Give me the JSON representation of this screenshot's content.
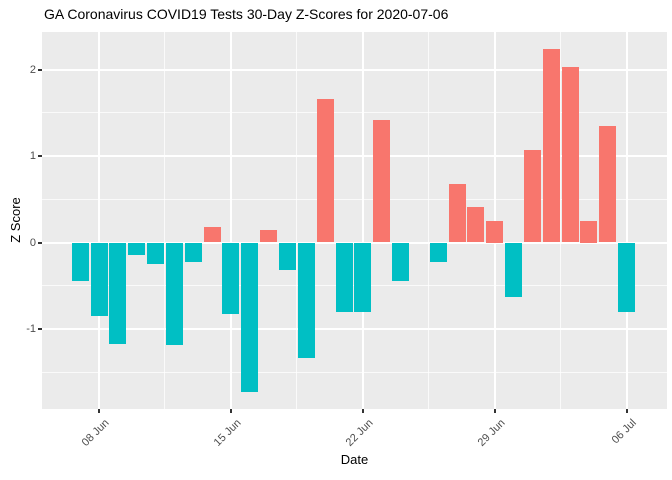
{
  "title": "GA Coronavirus COVID19 Tests 30-Day Z-Scores for 2020-07-06",
  "chart_data": {
    "type": "bar",
    "title": "GA Coronavirus COVID19 Tests 30-Day Z-Scores for 2020-07-06",
    "xlabel": "Date",
    "ylabel": "Z Score",
    "categories": [
      "2020-06-07",
      "2020-06-08",
      "2020-06-09",
      "2020-06-10",
      "2020-06-11",
      "2020-06-12",
      "2020-06-13",
      "2020-06-14",
      "2020-06-15",
      "2020-06-16",
      "2020-06-17",
      "2020-06-18",
      "2020-06-19",
      "2020-06-20",
      "2020-06-21",
      "2020-06-22",
      "2020-06-23",
      "2020-06-24",
      "2020-06-25",
      "2020-06-26",
      "2020-06-27",
      "2020-06-28",
      "2020-06-29",
      "2020-06-30",
      "2020-07-01",
      "2020-07-02",
      "2020-07-03",
      "2020-07-04",
      "2020-07-05",
      "2020-07-06"
    ],
    "values": [
      -0.45,
      -0.85,
      -1.17,
      -0.15,
      -0.25,
      -1.18,
      -0.23,
      0.18,
      -0.83,
      -1.73,
      0.14,
      -0.32,
      -1.33,
      1.66,
      -0.8,
      -0.8,
      1.42,
      -0.45,
      0.0,
      -0.23,
      0.68,
      0.41,
      0.25,
      -0.63,
      1.07,
      2.24,
      2.03,
      0.25,
      1.35,
      -0.8
    ],
    "x_ticks": [
      {
        "label": "08 Jun",
        "index": 1
      },
      {
        "label": "15 Jun",
        "index": 8
      },
      {
        "label": "22 Jun",
        "index": 15
      },
      {
        "label": "29 Jun",
        "index": 22
      },
      {
        "label": "06 Jul",
        "index": 29
      }
    ],
    "x_minor_indices": [
      4.5,
      11.5,
      18.5,
      25.5
    ],
    "y_ticks": [
      2,
      1,
      0,
      -1
    ],
    "y_minor_ticks": [
      1.5,
      0.5,
      -0.5,
      -1.5
    ],
    "ylim": [
      -1.92,
      2.43
    ],
    "grid": "on",
    "legend": "none",
    "colors": {
      "positive": "#F8766D",
      "negative": "#00BFC4",
      "panel_background": "#EBEBEB",
      "gridline": "#FFFFFF",
      "tick_text": "#4D4D4D",
      "axis_text": "#000000"
    }
  }
}
